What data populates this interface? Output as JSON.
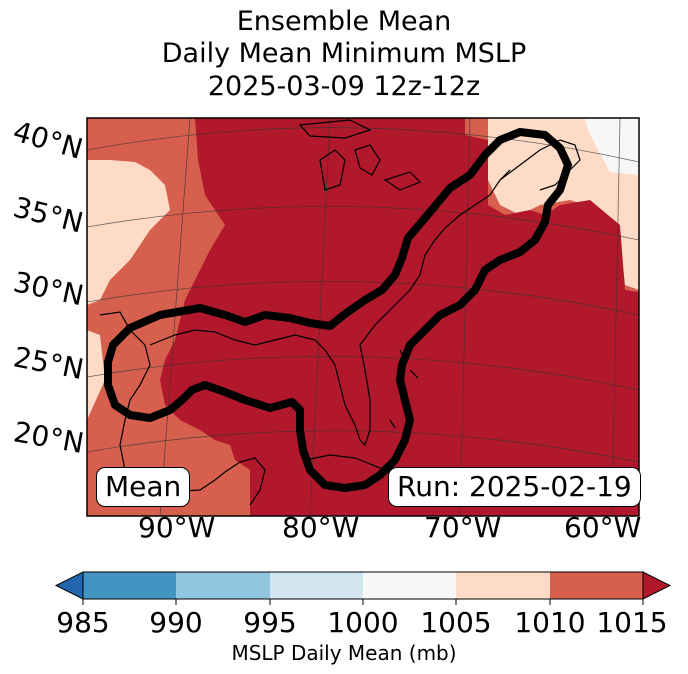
{
  "title": {
    "line1": "Ensemble Mean",
    "line2": "Daily Mean Minimum MSLP",
    "line3": "2025-03-09 12z-12z"
  },
  "map": {
    "lat_labels": [
      "40°N",
      "35°N",
      "30°N",
      "25°N",
      "20°N"
    ],
    "lon_labels": [
      "90°W",
      "80°W",
      "70°W",
      "60°W"
    ],
    "mean_box": "Mean",
    "run_box": "Run: 2025-02-19",
    "colors": {
      "c1015": "#b2182b",
      "c1010": "#d6604d",
      "c1005": "#fddbc7",
      "c1000": "#f7f7f7",
      "c995": "#d1e5f0",
      "c990": "#92c5de",
      "c985": "#4393c3",
      "below": "#2166ac"
    }
  },
  "colorbar": {
    "ticks": [
      "985",
      "990",
      "995",
      "1000",
      "1005",
      "1010",
      "1015"
    ],
    "label": "MSLP Daily Mean (mb)"
  }
}
